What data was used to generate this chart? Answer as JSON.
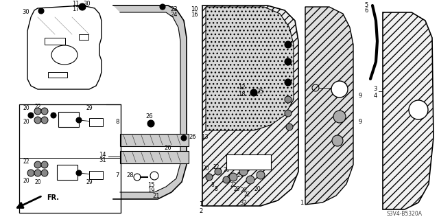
{
  "bg_color": "#ffffff",
  "diagram_code": "S3V4-B5320A",
  "black": "#000000",
  "gray": "#888888",
  "lgray": "#cccccc",
  "dgray": "#444444"
}
